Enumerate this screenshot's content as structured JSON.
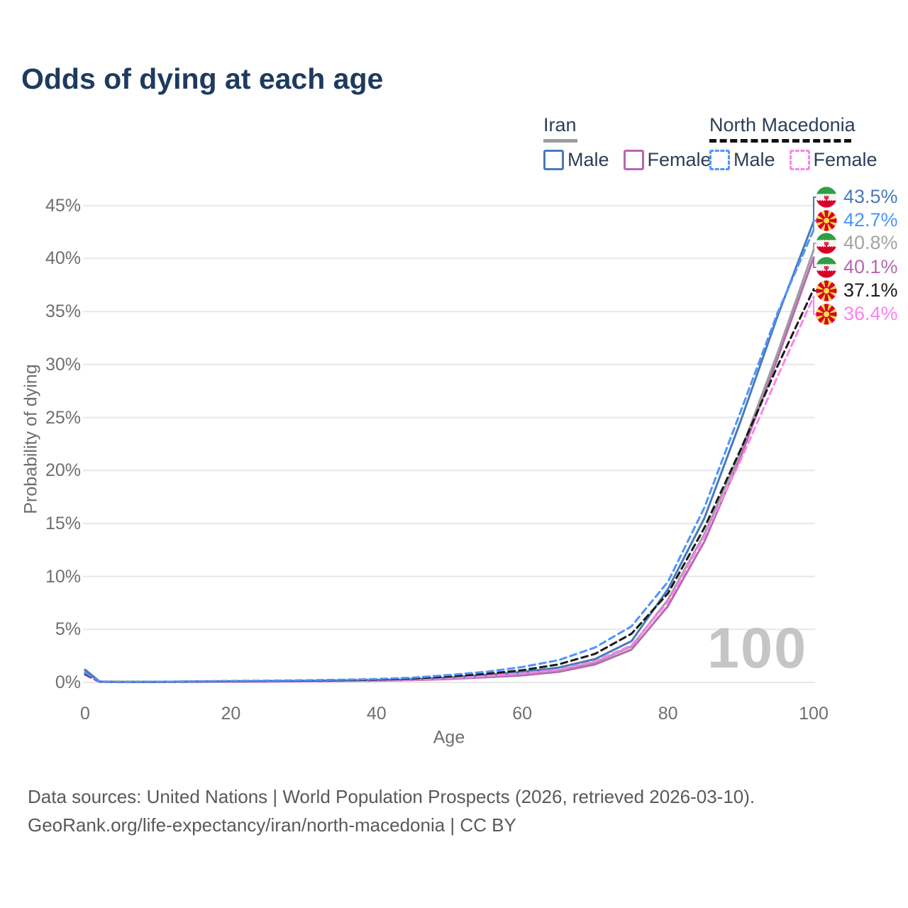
{
  "title": "Odds of dying at each age",
  "watermark": "100",
  "legend": {
    "groups": [
      {
        "label": "Iran",
        "underline_style": "solid",
        "underline_color": "#9e9e9e",
        "items": [
          {
            "label": "Male",
            "color": "#4a79b8",
            "line_style": "solid"
          },
          {
            "label": "Female",
            "color": "#b668b1",
            "line_style": "solid"
          }
        ]
      },
      {
        "label": "North Macedonia",
        "underline_style": "dashed",
        "underline_color": "#111111",
        "items": [
          {
            "label": "Male",
            "color": "#4d94ff",
            "line_style": "dashed"
          },
          {
            "label": "Female",
            "color": "#ff80f0",
            "line_style": "dashed"
          }
        ]
      }
    ]
  },
  "chart_data": {
    "type": "line",
    "title": "Odds of dying at each age",
    "xlabel": "Age",
    "ylabel": "Probability of dying",
    "xlim": [
      0,
      100
    ],
    "ylim_percent": [
      0,
      45
    ],
    "grid": "horizontal",
    "x_ticks": [
      {
        "value": 0,
        "label": "0"
      },
      {
        "value": 20,
        "label": "20"
      },
      {
        "value": 40,
        "label": "40"
      },
      {
        "value": 60,
        "label": "60"
      },
      {
        "value": 80,
        "label": "80"
      },
      {
        "value": 100,
        "label": "100"
      }
    ],
    "y_ticks": [
      {
        "value": 0,
        "label": "0%"
      },
      {
        "value": 5,
        "label": "5%"
      },
      {
        "value": 10,
        "label": "10%"
      },
      {
        "value": 15,
        "label": "15%"
      },
      {
        "value": 20,
        "label": "20%"
      },
      {
        "value": 25,
        "label": "25%"
      },
      {
        "value": 30,
        "label": "30%"
      },
      {
        "value": 35,
        "label": "35%"
      },
      {
        "value": 40,
        "label": "40%"
      },
      {
        "value": 45,
        "label": "45%"
      }
    ],
    "ages": [
      0,
      2,
      5,
      10,
      15,
      20,
      25,
      30,
      35,
      40,
      45,
      50,
      55,
      60,
      65,
      70,
      75,
      80,
      85,
      90,
      95,
      100
    ],
    "series": [
      {
        "key": "iran-female",
        "name": "Iran Female",
        "style": "solid",
        "color": "#b668b1",
        "values": [
          1.0,
          0.06,
          0.04,
          0.05,
          0.06,
          0.08,
          0.09,
          0.11,
          0.13,
          0.16,
          0.22,
          0.32,
          0.48,
          0.66,
          1.0,
          1.7,
          3.1,
          7.2,
          13.3,
          21.3,
          30.5,
          40.1
        ]
      },
      {
        "key": "iran-all",
        "name": "Iran",
        "style": "solid",
        "color": "#9e9e9e",
        "values": [
          1.1,
          0.07,
          0.05,
          0.05,
          0.08,
          0.09,
          0.11,
          0.13,
          0.15,
          0.19,
          0.26,
          0.38,
          0.58,
          0.82,
          1.15,
          1.9,
          3.4,
          7.8,
          14.0,
          21.8,
          31.0,
          40.8
        ]
      },
      {
        "key": "iran-male",
        "name": "Iran Male",
        "style": "solid",
        "color": "#4a79b8",
        "values": [
          1.2,
          0.08,
          0.05,
          0.06,
          0.09,
          0.11,
          0.13,
          0.15,
          0.18,
          0.22,
          0.3,
          0.45,
          0.7,
          1.0,
          1.4,
          2.2,
          3.9,
          8.8,
          15.5,
          24.7,
          34.5,
          43.5
        ]
      },
      {
        "key": "nm-female",
        "name": "North Macedonia Female",
        "style": "dashed",
        "color": "#ff80f0",
        "values": [
          0.7,
          0.05,
          0.03,
          0.04,
          0.06,
          0.08,
          0.1,
          0.12,
          0.15,
          0.19,
          0.27,
          0.42,
          0.6,
          0.85,
          1.2,
          2.0,
          3.5,
          7.6,
          13.8,
          21.0,
          28.8,
          36.4
        ]
      },
      {
        "key": "nm-all",
        "name": "North Macedonia",
        "style": "dashed",
        "color": "#1a1a1a",
        "values": [
          0.8,
          0.06,
          0.04,
          0.05,
          0.08,
          0.11,
          0.14,
          0.16,
          0.2,
          0.26,
          0.36,
          0.55,
          0.8,
          1.15,
          1.7,
          2.7,
          4.6,
          8.4,
          14.6,
          22.0,
          29.8,
          37.1
        ]
      },
      {
        "key": "nm-male",
        "name": "North Macedonia Male",
        "style": "dashed",
        "color": "#4d94ff",
        "values": [
          0.9,
          0.07,
          0.04,
          0.06,
          0.1,
          0.14,
          0.17,
          0.2,
          0.25,
          0.32,
          0.45,
          0.7,
          1.0,
          1.45,
          2.1,
          3.3,
          5.3,
          9.5,
          16.5,
          25.6,
          34.8,
          42.7
        ]
      }
    ],
    "end_annotations": [
      {
        "flag": "iran",
        "series": "Iran Male",
        "label": "43.5%",
        "value": 43.5,
        "color": "#4a79b8"
      },
      {
        "flag": "north-macedonia",
        "series": "North Macedonia Male",
        "label": "42.7%",
        "value": 42.7,
        "color": "#4d94ff"
      },
      {
        "flag": "iran",
        "series": "Iran",
        "label": "40.8%",
        "value": 40.8,
        "color": "#a3a3a3"
      },
      {
        "flag": "iran",
        "series": "Iran Female",
        "label": "40.1%",
        "value": 40.1,
        "color": "#b668b1"
      },
      {
        "flag": "north-macedonia",
        "series": "North Macedonia",
        "label": "37.1%",
        "value": 37.1,
        "color": "#1a1a1a"
      },
      {
        "flag": "north-macedonia",
        "series": "North Macedonia Female",
        "label": "36.4%",
        "value": 36.4,
        "color": "#ff80f0"
      }
    ]
  },
  "footer": {
    "line1": "Data sources: United Nations | World Population Prospects (2026, retrieved 2026-03-10).",
    "line2": "GeoRank.org/life-expectancy/iran/north-macedonia | CC BY"
  },
  "colors": {
    "title": "#1e3a5f",
    "axis_text": "#6f6f6f",
    "gridline": "#e7e7e7",
    "watermark": "#c5c5c5",
    "footer_text": "#595959"
  }
}
